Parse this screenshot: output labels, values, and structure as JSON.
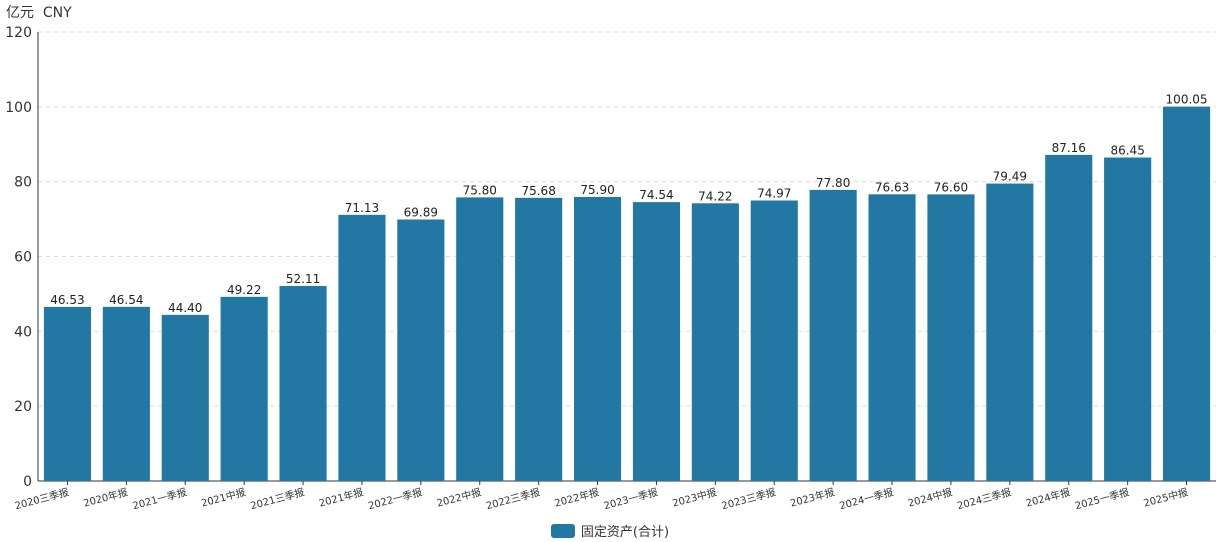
{
  "unit_label": "亿元  CNY",
  "legend": {
    "label": "固定资产(合计)"
  },
  "colors": {
    "bar": "#2378a3",
    "grid": "#dcdcdc",
    "axis": "#333333"
  },
  "chart_data": {
    "type": "bar",
    "categories": [
      "2020三季报",
      "2020年报",
      "2021一季报",
      "2021中报",
      "2021三季报",
      "2021年报",
      "2022一季报",
      "2022中报",
      "2022三季报",
      "2022年报",
      "2023一季报",
      "2023中报",
      "2023三季报",
      "2023年报",
      "2024一季报",
      "2024中报",
      "2024三季报",
      "2024年报",
      "2025一季报",
      "2025中报"
    ],
    "series": [
      {
        "name": "固定资产(合计)",
        "values": [
          46.53,
          46.54,
          44.4,
          49.22,
          52.11,
          71.13,
          69.89,
          75.8,
          75.68,
          75.9,
          74.54,
          74.22,
          74.97,
          77.8,
          76.63,
          76.6,
          79.49,
          87.16,
          86.45,
          100.05
        ],
        "labels": [
          "46.53",
          "46.54",
          "44.40",
          "49.22",
          "52.11",
          "71.13",
          "69.89",
          "75.80",
          "75.68",
          "75.90",
          "74.54",
          "74.22",
          "74.97",
          "77.80",
          "76.63",
          "76.60",
          "79.49",
          "87.16",
          "86.45",
          "100.05"
        ]
      }
    ],
    "ylim": [
      0,
      120
    ],
    "yticks": [
      "0",
      "20",
      "40",
      "60",
      "80",
      "100",
      "120"
    ],
    "grid": true,
    "legend_position": "bottom-center"
  }
}
